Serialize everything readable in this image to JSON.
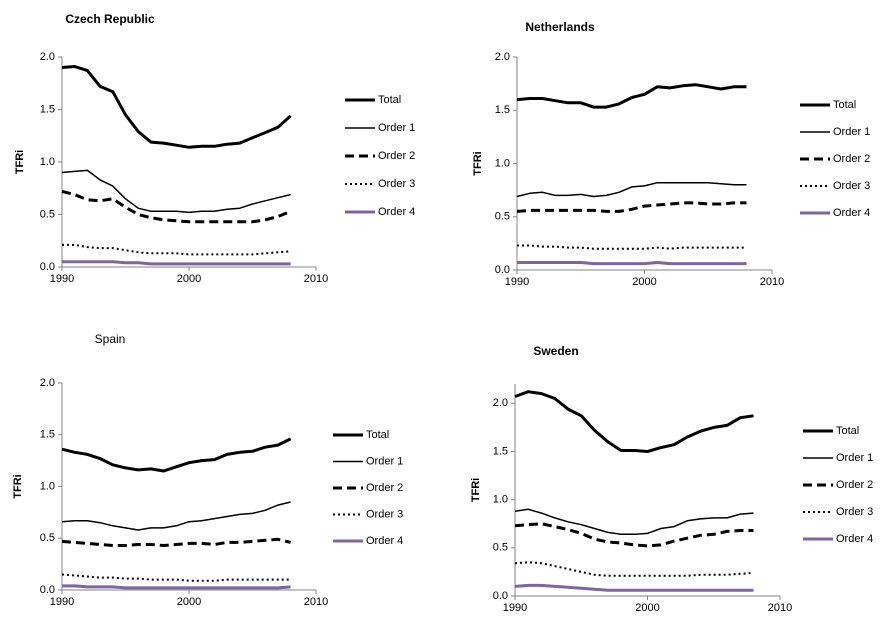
{
  "chart_data": [
    {
      "type": "line",
      "title": "Czech Republic",
      "title_bold": true,
      "y_label": "TFRi",
      "x": [
        1990,
        1991,
        1992,
        1993,
        1994,
        1995,
        1996,
        1997,
        1998,
        1999,
        2000,
        2001,
        2002,
        2003,
        2004,
        2005,
        2006,
        2007,
        2008
      ],
      "xlim": [
        1990,
        2010
      ],
      "xticks": [
        1990,
        2000,
        2010
      ],
      "ylim": [
        0,
        2
      ],
      "yticks": [
        {
          "value": 0,
          "label": "0.0"
        },
        0.5,
        {
          "value": 1,
          "label": "1.0"
        },
        1.5,
        {
          "value": 2,
          "label": "2.0"
        }
      ],
      "grid": false,
      "legend": "right",
      "series": [
        {
          "name": "Total",
          "color": "#000000",
          "linewidth": 3,
          "dash": "solid",
          "values": [
            1.9,
            1.91,
            1.87,
            1.72,
            1.67,
            1.45,
            1.29,
            1.19,
            1.18,
            1.16,
            1.14,
            1.15,
            1.15,
            1.17,
            1.18,
            1.23,
            1.28,
            1.33,
            1.44
          ]
        },
        {
          "name": "Order 1",
          "color": "#000000",
          "linewidth": 1.5,
          "dash": "solid",
          "values": [
            0.9,
            0.91,
            0.92,
            0.83,
            0.77,
            0.65,
            0.56,
            0.53,
            0.53,
            0.53,
            0.52,
            0.53,
            0.53,
            0.55,
            0.56,
            0.6,
            0.63,
            0.66,
            0.69
          ]
        },
        {
          "name": "Order 2",
          "color": "#000000",
          "linewidth": 3,
          "dash": "dashed",
          "values": [
            0.72,
            0.69,
            0.64,
            0.63,
            0.65,
            0.57,
            0.5,
            0.47,
            0.45,
            0.44,
            0.43,
            0.43,
            0.43,
            0.43,
            0.43,
            0.43,
            0.45,
            0.48,
            0.53
          ]
        },
        {
          "name": "Order 3",
          "color": "#000000",
          "linewidth": 2,
          "dash": "dotted",
          "values": [
            0.21,
            0.21,
            0.19,
            0.18,
            0.18,
            0.16,
            0.14,
            0.13,
            0.13,
            0.13,
            0.12,
            0.12,
            0.12,
            0.12,
            0.12,
            0.12,
            0.13,
            0.14,
            0.15
          ]
        },
        {
          "name": "Order 4",
          "color": "#8064a2",
          "linewidth": 3,
          "dash": "solid",
          "values": [
            0.05,
            0.05,
            0.05,
            0.05,
            0.05,
            0.04,
            0.04,
            0.03,
            0.03,
            0.03,
            0.03,
            0.03,
            0.03,
            0.03,
            0.03,
            0.03,
            0.03,
            0.03,
            0.03
          ]
        }
      ]
    },
    {
      "type": "line",
      "title": "Netherlands",
      "title_bold": true,
      "y_label": "TFRi",
      "x": [
        1990,
        1991,
        1992,
        1993,
        1994,
        1995,
        1996,
        1997,
        1998,
        1999,
        2000,
        2001,
        2002,
        2003,
        2004,
        2005,
        2006,
        2007,
        2008
      ],
      "xlim": [
        1990,
        2010
      ],
      "xticks": [
        1990,
        2000,
        2010
      ],
      "ylim": [
        0,
        2
      ],
      "yticks": [
        {
          "value": 0,
          "label": "0.0"
        },
        0.5,
        {
          "value": 1,
          "label": "1.0"
        },
        1.5,
        {
          "value": 2,
          "label": "2.0"
        }
      ],
      "grid": false,
      "legend": "right",
      "series": [
        {
          "name": "Total",
          "color": "#000000",
          "linewidth": 3,
          "dash": "solid",
          "values": [
            1.6,
            1.61,
            1.61,
            1.59,
            1.57,
            1.57,
            1.53,
            1.53,
            1.56,
            1.62,
            1.65,
            1.72,
            1.71,
            1.73,
            1.74,
            1.72,
            1.7,
            1.72,
            1.72
          ]
        },
        {
          "name": "Order 1",
          "color": "#000000",
          "linewidth": 1.5,
          "dash": "solid",
          "values": [
            0.69,
            0.72,
            0.73,
            0.7,
            0.7,
            0.71,
            0.69,
            0.7,
            0.73,
            0.78,
            0.79,
            0.82,
            0.82,
            0.82,
            0.82,
            0.82,
            0.81,
            0.8,
            0.8
          ]
        },
        {
          "name": "Order 2",
          "color": "#000000",
          "linewidth": 3,
          "dash": "dashed",
          "values": [
            0.55,
            0.56,
            0.56,
            0.56,
            0.56,
            0.56,
            0.56,
            0.55,
            0.55,
            0.57,
            0.6,
            0.61,
            0.62,
            0.63,
            0.63,
            0.62,
            0.62,
            0.63,
            0.63
          ]
        },
        {
          "name": "Order 3",
          "color": "#000000",
          "linewidth": 2,
          "dash": "dotted",
          "values": [
            0.23,
            0.23,
            0.22,
            0.22,
            0.21,
            0.21,
            0.2,
            0.2,
            0.2,
            0.2,
            0.2,
            0.21,
            0.2,
            0.21,
            0.21,
            0.21,
            0.21,
            0.21,
            0.21
          ]
        },
        {
          "name": "Order 4",
          "color": "#8064a2",
          "linewidth": 3,
          "dash": "solid",
          "values": [
            0.07,
            0.07,
            0.07,
            0.07,
            0.07,
            0.07,
            0.06,
            0.06,
            0.06,
            0.06,
            0.06,
            0.07,
            0.06,
            0.06,
            0.06,
            0.06,
            0.06,
            0.06,
            0.06
          ]
        }
      ]
    },
    {
      "type": "line",
      "title": "Spain",
      "title_bold": false,
      "y_label": "TFRi",
      "x": [
        1990,
        1991,
        1992,
        1993,
        1994,
        1995,
        1996,
        1997,
        1998,
        1999,
        2000,
        2001,
        2002,
        2003,
        2004,
        2005,
        2006,
        2007,
        2008
      ],
      "xlim": [
        1990,
        2010
      ],
      "xticks": [
        1990,
        2000,
        2010
      ],
      "ylim": [
        0,
        2
      ],
      "yticks": [
        {
          "value": 0,
          "label": "0.0"
        },
        0.5,
        {
          "value": 1,
          "label": "1.0"
        },
        1.5,
        {
          "value": 2,
          "label": "2.0"
        }
      ],
      "grid": false,
      "legend": "right",
      "series": [
        {
          "name": "Total",
          "color": "#000000",
          "linewidth": 3,
          "dash": "solid",
          "values": [
            1.36,
            1.33,
            1.31,
            1.27,
            1.21,
            1.18,
            1.16,
            1.17,
            1.15,
            1.19,
            1.23,
            1.25,
            1.26,
            1.31,
            1.33,
            1.34,
            1.38,
            1.4,
            1.46
          ]
        },
        {
          "name": "Order 1",
          "color": "#000000",
          "linewidth": 1.5,
          "dash": "solid",
          "values": [
            0.66,
            0.67,
            0.67,
            0.65,
            0.62,
            0.6,
            0.58,
            0.6,
            0.6,
            0.62,
            0.66,
            0.67,
            0.69,
            0.71,
            0.73,
            0.74,
            0.77,
            0.82,
            0.85
          ]
        },
        {
          "name": "Order 2",
          "color": "#000000",
          "linewidth": 3,
          "dash": "dashed",
          "values": [
            0.47,
            0.46,
            0.45,
            0.44,
            0.43,
            0.43,
            0.44,
            0.44,
            0.43,
            0.44,
            0.45,
            0.45,
            0.44,
            0.46,
            0.46,
            0.47,
            0.48,
            0.49,
            0.46
          ]
        },
        {
          "name": "Order 3",
          "color": "#000000",
          "linewidth": 2,
          "dash": "dotted",
          "values": [
            0.15,
            0.14,
            0.13,
            0.12,
            0.12,
            0.11,
            0.11,
            0.1,
            0.1,
            0.1,
            0.09,
            0.09,
            0.09,
            0.1,
            0.1,
            0.1,
            0.1,
            0.1,
            0.1
          ]
        },
        {
          "name": "Order 4",
          "color": "#8064a2",
          "linewidth": 3,
          "dash": "solid",
          "values": [
            0.04,
            0.04,
            0.03,
            0.03,
            0.03,
            0.02,
            0.02,
            0.02,
            0.02,
            0.02,
            0.02,
            0.02,
            0.02,
            0.02,
            0.02,
            0.02,
            0.02,
            0.02,
            0.03
          ]
        }
      ]
    },
    {
      "type": "line",
      "title": "Sweden",
      "title_bold": true,
      "y_label": "TFRi",
      "x": [
        1990,
        1991,
        1992,
        1993,
        1994,
        1995,
        1996,
        1997,
        1998,
        1999,
        2000,
        2001,
        2002,
        2003,
        2004,
        2005,
        2006,
        2007,
        2008
      ],
      "xlim": [
        1990,
        2010
      ],
      "xticks": [
        1990,
        2000,
        2010
      ],
      "ylim": [
        0,
        2.2
      ],
      "yticks": [
        {
          "value": 0,
          "label": "0.0"
        },
        0.5,
        {
          "value": 1,
          "label": "1.0"
        },
        1.5,
        {
          "value": 2,
          "label": "2.0"
        }
      ],
      "grid": false,
      "legend": "right",
      "series": [
        {
          "name": "Total",
          "color": "#000000",
          "linewidth": 3,
          "dash": "solid",
          "values": [
            2.07,
            2.12,
            2.1,
            2.05,
            1.94,
            1.87,
            1.72,
            1.6,
            1.51,
            1.51,
            1.5,
            1.54,
            1.57,
            1.65,
            1.71,
            1.75,
            1.77,
            1.85,
            1.87
          ]
        },
        {
          "name": "Order 1",
          "color": "#000000",
          "linewidth": 1.5,
          "dash": "solid",
          "values": [
            0.88,
            0.9,
            0.86,
            0.81,
            0.77,
            0.74,
            0.7,
            0.66,
            0.64,
            0.64,
            0.65,
            0.7,
            0.72,
            0.78,
            0.8,
            0.81,
            0.81,
            0.85,
            0.86
          ]
        },
        {
          "name": "Order 2",
          "color": "#000000",
          "linewidth": 3,
          "dash": "dashed",
          "values": [
            0.73,
            0.74,
            0.75,
            0.72,
            0.69,
            0.65,
            0.59,
            0.56,
            0.55,
            0.53,
            0.52,
            0.53,
            0.57,
            0.6,
            0.63,
            0.64,
            0.67,
            0.68,
            0.68
          ]
        },
        {
          "name": "Order 3",
          "color": "#000000",
          "linewidth": 2,
          "dash": "dotted",
          "values": [
            0.34,
            0.35,
            0.34,
            0.31,
            0.28,
            0.25,
            0.22,
            0.21,
            0.21,
            0.21,
            0.21,
            0.21,
            0.21,
            0.21,
            0.22,
            0.22,
            0.22,
            0.23,
            0.24
          ]
        },
        {
          "name": "Order 4",
          "color": "#8064a2",
          "linewidth": 3,
          "dash": "solid",
          "values": [
            0.1,
            0.11,
            0.11,
            0.1,
            0.09,
            0.08,
            0.07,
            0.06,
            0.06,
            0.06,
            0.06,
            0.06,
            0.06,
            0.06,
            0.06,
            0.06,
            0.06,
            0.06,
            0.06
          ]
        }
      ]
    }
  ]
}
